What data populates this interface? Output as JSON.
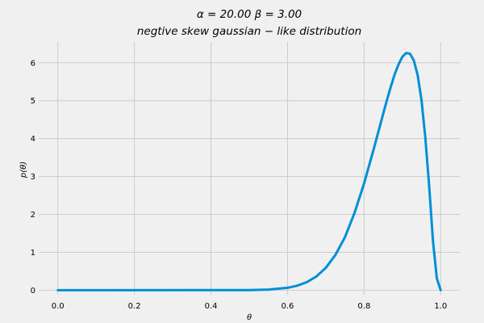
{
  "chart_data": {
    "type": "line",
    "title": "α = 20.00    β = 3.00",
    "subtitle": "negtive  skew  gaussian − like   distribution",
    "xlabel": "θ",
    "ylabel": "p(θ)",
    "xlim": [
      -0.05,
      1.05
    ],
    "ylim": [
      -0.12,
      6.55
    ],
    "x_ticks": [
      0.0,
      0.2,
      0.4,
      0.6,
      0.8,
      1.0
    ],
    "x_tick_labels": [
      "0.0",
      "0.2",
      "0.4",
      "0.6",
      "0.8",
      "1.0"
    ],
    "y_ticks": [
      0,
      1,
      2,
      3,
      4,
      5,
      6
    ],
    "y_tick_labels": [
      "0",
      "1",
      "2",
      "3",
      "4",
      "5",
      "6"
    ],
    "grid": true,
    "colors": {
      "line": "#008fd5",
      "background": "#f0f0f0",
      "grid": "#cbcbcb"
    },
    "series": [
      {
        "values_x": [
          0.0,
          0.5,
          0.55,
          0.6,
          0.625,
          0.65,
          0.675,
          0.7,
          0.725,
          0.75,
          0.775,
          0.8,
          0.825,
          0.85,
          0.86,
          0.87,
          0.88,
          0.89,
          0.9,
          0.91,
          0.92,
          0.93,
          0.94,
          0.95,
          0.96,
          0.97,
          0.98,
          0.99,
          1.0
        ],
        "values_y": [
          0.0,
          0.002,
          0.015,
          0.063,
          0.118,
          0.21,
          0.36,
          0.59,
          0.93,
          1.4,
          2.04,
          2.82,
          3.72,
          4.66,
          5.03,
          5.38,
          5.7,
          5.96,
          6.16,
          6.26,
          6.24,
          6.06,
          5.67,
          5.01,
          4.02,
          2.74,
          1.29,
          0.31,
          0.0
        ]
      }
    ]
  }
}
